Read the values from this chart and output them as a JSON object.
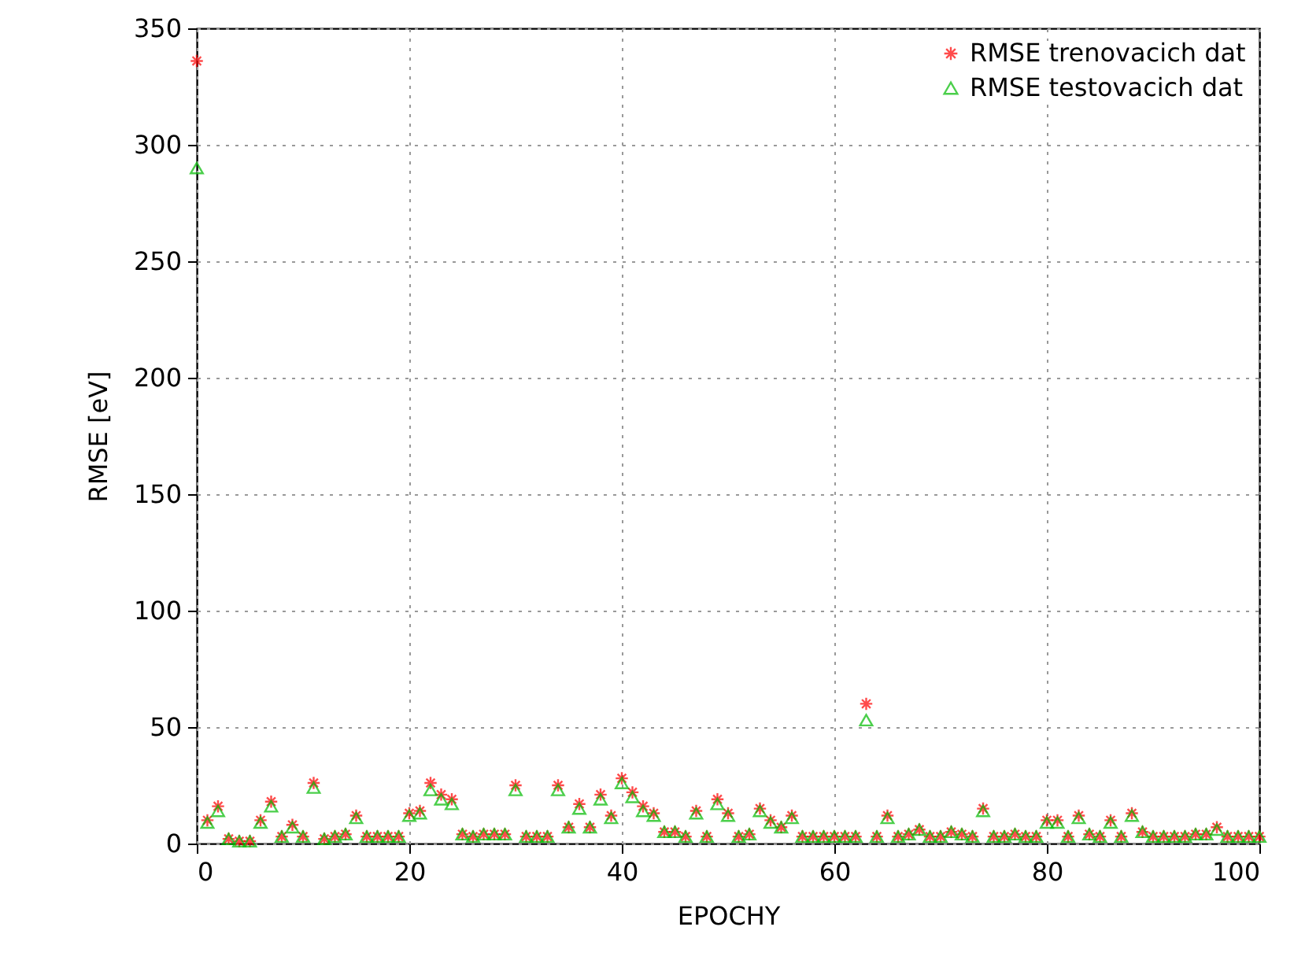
{
  "chart_data": {
    "type": "scatter",
    "xlabel": "EPOCHY",
    "ylabel": "RMSE [eV]",
    "xlim": [
      0,
      100
    ],
    "xticks": [
      0,
      20,
      40,
      60,
      80,
      100
    ],
    "ylim": [
      0,
      350
    ],
    "yticks": [
      0,
      50,
      100,
      150,
      200,
      250,
      300,
      350
    ],
    "grid": true,
    "legend": "top right",
    "x": [
      0,
      1,
      2,
      3,
      4,
      5,
      6,
      7,
      8,
      9,
      10,
      11,
      12,
      13,
      14,
      15,
      16,
      17,
      18,
      19,
      20,
      21,
      22,
      23,
      24,
      25,
      26,
      27,
      28,
      29,
      30,
      31,
      32,
      33,
      34,
      35,
      36,
      37,
      38,
      39,
      40,
      41,
      42,
      43,
      44,
      45,
      46,
      47,
      48,
      49,
      50,
      51,
      52,
      53,
      54,
      55,
      56,
      57,
      58,
      59,
      60,
      61,
      62,
      63,
      64,
      65,
      66,
      67,
      68,
      69,
      70,
      71,
      72,
      73,
      74,
      75,
      76,
      77,
      78,
      79,
      80,
      81,
      82,
      83,
      84,
      85,
      86,
      87,
      88,
      89,
      90,
      91,
      92,
      93,
      94,
      95,
      96,
      97,
      98,
      99,
      100
    ],
    "series": [
      {
        "name": "RMSE trenovacich dat",
        "color": "#ff0000",
        "marker": "cross",
        "values": [
          336,
          10,
          16,
          2,
          1,
          1,
          10,
          18,
          3,
          8,
          3,
          26,
          2,
          3,
          4,
          12,
          3,
          3,
          3,
          3,
          13,
          14,
          26,
          21,
          19,
          4,
          3,
          4,
          4,
          4,
          25,
          3,
          3,
          3,
          25,
          7,
          17,
          7,
          21,
          12,
          28,
          22,
          16,
          13,
          5,
          5,
          3,
          14,
          3,
          19,
          13,
          3,
          4,
          15,
          10,
          7,
          12,
          3,
          3,
          3,
          3,
          3,
          3,
          60,
          3,
          12,
          3,
          4,
          6,
          3,
          3,
          5,
          4,
          3,
          15,
          3,
          3,
          4,
          3,
          3,
          10,
          10,
          3,
          12,
          4,
          3,
          10,
          3,
          13,
          5,
          3,
          3,
          3,
          3,
          4,
          4,
          7,
          3,
          3,
          3,
          3
        ]
      },
      {
        "name": "RMSE testovacich dat",
        "color": "#00bb00",
        "marker": "triangle",
        "values": [
          290,
          9,
          14,
          2,
          1,
          1,
          9,
          16,
          3,
          7,
          3,
          24,
          2,
          3,
          4,
          11,
          3,
          3,
          3,
          3,
          12,
          13,
          23,
          19,
          17,
          4,
          3,
          4,
          4,
          4,
          23,
          3,
          3,
          3,
          23,
          7,
          15,
          7,
          19,
          11,
          26,
          20,
          14,
          12,
          5,
          5,
          3,
          13,
          3,
          17,
          12,
          3,
          4,
          14,
          9,
          7,
          11,
          3,
          3,
          3,
          3,
          3,
          3,
          53,
          3,
          11,
          3,
          4,
          6,
          3,
          3,
          5,
          4,
          3,
          14,
          3,
          3,
          4,
          3,
          3,
          9,
          9,
          3,
          11,
          4,
          3,
          9,
          3,
          12,
          5,
          3,
          3,
          3,
          3,
          4,
          4,
          6,
          3,
          3,
          3,
          3
        ]
      }
    ]
  }
}
